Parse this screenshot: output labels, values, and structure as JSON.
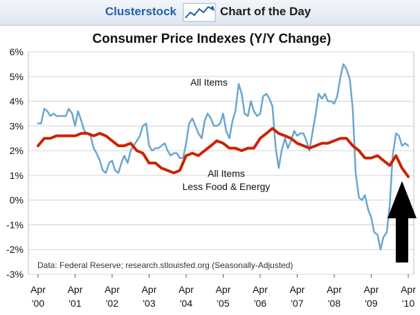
{
  "header": {
    "brand": "Clusterstock",
    "label": "Chart of the Day",
    "logo_icon": "chart-trend-icon"
  },
  "chart_data": {
    "type": "line",
    "title": "Consumer Price Indexes (Y/Y Change)",
    "xlabel": "",
    "ylabel": "",
    "ylim": [
      -3,
      6
    ],
    "xlim": [
      2000.25,
      2010.25
    ],
    "yticks": [
      {
        "value": 6,
        "label": "6%"
      },
      {
        "value": 5,
        "label": "5%"
      },
      {
        "value": 4,
        "label": "4%"
      },
      {
        "value": 3,
        "label": "3%"
      },
      {
        "value": 2,
        "label": "2%"
      },
      {
        "value": 1,
        "label": "1%"
      },
      {
        "value": 0,
        "label": "0%"
      },
      {
        "value": -1,
        "label": "-1%"
      },
      {
        "value": -2,
        "label": "-2%"
      },
      {
        "value": -3,
        "label": "-3%"
      }
    ],
    "xticks": [
      {
        "value": 2000.25,
        "line1": "Apr",
        "line2": "'00"
      },
      {
        "value": 2001.25,
        "line1": "Apr",
        "line2": "'01"
      },
      {
        "value": 2002.25,
        "line1": "Apr",
        "line2": "'02"
      },
      {
        "value": 2003.25,
        "line1": "Apr",
        "line2": "'03"
      },
      {
        "value": 2004.25,
        "line1": "Apr",
        "line2": "'04"
      },
      {
        "value": 2005.25,
        "line1": "Apr",
        "line2": "'05"
      },
      {
        "value": 2006.25,
        "line1": "Apr",
        "line2": "'06"
      },
      {
        "value": 2007.25,
        "line1": "Apr",
        "line2": "'07"
      },
      {
        "value": 2008.25,
        "line1": "Apr",
        "line2": "'08"
      },
      {
        "value": 2009.25,
        "line1": "Apr",
        "line2": "'09"
      },
      {
        "value": 2010.25,
        "line1": "Apr",
        "line2": "'10"
      }
    ],
    "grid": true,
    "series": [
      {
        "name": "All Items",
        "color": "#6aa6cf",
        "points": [
          [
            2000.25,
            3.1
          ],
          [
            2000.33,
            3.1
          ],
          [
            2000.42,
            3.7
          ],
          [
            2000.5,
            3.6
          ],
          [
            2000.58,
            3.4
          ],
          [
            2000.67,
            3.5
          ],
          [
            2000.75,
            3.4
          ],
          [
            2000.83,
            3.4
          ],
          [
            2000.92,
            3.4
          ],
          [
            2001.0,
            3.4
          ],
          [
            2001.08,
            3.7
          ],
          [
            2001.17,
            3.5
          ],
          [
            2001.25,
            3.0
          ],
          [
            2001.33,
            3.6
          ],
          [
            2001.42,
            3.2
          ],
          [
            2001.5,
            2.8
          ],
          [
            2001.58,
            2.7
          ],
          [
            2001.67,
            2.6
          ],
          [
            2001.75,
            2.1
          ],
          [
            2001.83,
            1.9
          ],
          [
            2001.92,
            1.6
          ],
          [
            2002.0,
            1.2
          ],
          [
            2002.08,
            1.1
          ],
          [
            2002.17,
            1.5
          ],
          [
            2002.25,
            1.6
          ],
          [
            2002.33,
            1.2
          ],
          [
            2002.42,
            1.1
          ],
          [
            2002.5,
            1.5
          ],
          [
            2002.58,
            1.8
          ],
          [
            2002.67,
            1.5
          ],
          [
            2002.75,
            2.0
          ],
          [
            2002.83,
            2.2
          ],
          [
            2002.92,
            2.4
          ],
          [
            2003.0,
            2.6
          ],
          [
            2003.08,
            3.0
          ],
          [
            2003.17,
            3.1
          ],
          [
            2003.25,
            2.2
          ],
          [
            2003.33,
            2.0
          ],
          [
            2003.42,
            2.1
          ],
          [
            2003.5,
            2.1
          ],
          [
            2003.58,
            2.2
          ],
          [
            2003.67,
            2.3
          ],
          [
            2003.75,
            2.0
          ],
          [
            2003.83,
            1.8
          ],
          [
            2003.92,
            1.9
          ],
          [
            2004.0,
            1.9
          ],
          [
            2004.08,
            1.7
          ],
          [
            2004.17,
            1.7
          ],
          [
            2004.25,
            2.3
          ],
          [
            2004.33,
            3.1
          ],
          [
            2004.42,
            3.3
          ],
          [
            2004.5,
            3.0
          ],
          [
            2004.58,
            2.7
          ],
          [
            2004.67,
            2.5
          ],
          [
            2004.75,
            3.2
          ],
          [
            2004.83,
            3.5
          ],
          [
            2004.92,
            3.3
          ],
          [
            2005.0,
            3.0
          ],
          [
            2005.08,
            3.0
          ],
          [
            2005.17,
            3.1
          ],
          [
            2005.25,
            3.5
          ],
          [
            2005.33,
            2.8
          ],
          [
            2005.42,
            2.5
          ],
          [
            2005.5,
            3.2
          ],
          [
            2005.58,
            3.6
          ],
          [
            2005.67,
            4.7
          ],
          [
            2005.75,
            4.3
          ],
          [
            2005.83,
            3.5
          ],
          [
            2005.92,
            3.4
          ],
          [
            2006.0,
            4.0
          ],
          [
            2006.08,
            3.6
          ],
          [
            2006.17,
            3.4
          ],
          [
            2006.25,
            3.5
          ],
          [
            2006.33,
            4.2
          ],
          [
            2006.42,
            4.3
          ],
          [
            2006.5,
            4.1
          ],
          [
            2006.58,
            3.8
          ],
          [
            2006.67,
            2.1
          ],
          [
            2006.75,
            1.3
          ],
          [
            2006.83,
            2.0
          ],
          [
            2006.92,
            2.5
          ],
          [
            2007.0,
            2.1
          ],
          [
            2007.08,
            2.4
          ],
          [
            2007.17,
            2.8
          ],
          [
            2007.25,
            2.6
          ],
          [
            2007.33,
            2.7
          ],
          [
            2007.42,
            2.7
          ],
          [
            2007.5,
            2.4
          ],
          [
            2007.58,
            2.0
          ],
          [
            2007.67,
            2.8
          ],
          [
            2007.75,
            3.5
          ],
          [
            2007.83,
            4.3
          ],
          [
            2007.92,
            4.1
          ],
          [
            2008.0,
            4.3
          ],
          [
            2008.08,
            4.0
          ],
          [
            2008.17,
            4.0
          ],
          [
            2008.25,
            3.9
          ],
          [
            2008.33,
            4.2
          ],
          [
            2008.42,
            5.0
          ],
          [
            2008.5,
            5.5
          ],
          [
            2008.58,
            5.3
          ],
          [
            2008.67,
            4.9
          ],
          [
            2008.75,
            3.7
          ],
          [
            2008.83,
            1.1
          ],
          [
            2008.92,
            0.1
          ],
          [
            2009.0,
            0.0
          ],
          [
            2009.08,
            0.2
          ],
          [
            2009.17,
            -0.4
          ],
          [
            2009.25,
            -0.7
          ],
          [
            2009.33,
            -1.3
          ],
          [
            2009.42,
            -1.4
          ],
          [
            2009.5,
            -2.0
          ],
          [
            2009.58,
            -1.5
          ],
          [
            2009.67,
            -1.3
          ],
          [
            2009.75,
            -0.2
          ],
          [
            2009.83,
            1.8
          ],
          [
            2009.92,
            2.7
          ],
          [
            2010.0,
            2.6
          ],
          [
            2010.08,
            2.2
          ],
          [
            2010.17,
            2.3
          ],
          [
            2010.25,
            2.2
          ]
        ]
      },
      {
        "name": "All Items Less Food & Energy",
        "color": "#cc2200",
        "points": [
          [
            2000.25,
            2.2
          ],
          [
            2000.42,
            2.5
          ],
          [
            2000.58,
            2.5
          ],
          [
            2000.75,
            2.6
          ],
          [
            2000.92,
            2.6
          ],
          [
            2001.08,
            2.6
          ],
          [
            2001.25,
            2.6
          ],
          [
            2001.42,
            2.7
          ],
          [
            2001.58,
            2.7
          ],
          [
            2001.75,
            2.6
          ],
          [
            2001.92,
            2.7
          ],
          [
            2002.08,
            2.6
          ],
          [
            2002.25,
            2.4
          ],
          [
            2002.42,
            2.2
          ],
          [
            2002.58,
            2.2
          ],
          [
            2002.75,
            2.3
          ],
          [
            2002.92,
            2.0
          ],
          [
            2003.08,
            1.9
          ],
          [
            2003.25,
            1.5
          ],
          [
            2003.42,
            1.5
          ],
          [
            2003.58,
            1.3
          ],
          [
            2003.75,
            1.2
          ],
          [
            2003.92,
            1.1
          ],
          [
            2004.08,
            1.2
          ],
          [
            2004.25,
            1.8
          ],
          [
            2004.42,
            1.9
          ],
          [
            2004.58,
            1.8
          ],
          [
            2004.75,
            2.0
          ],
          [
            2004.92,
            2.2
          ],
          [
            2005.08,
            2.4
          ],
          [
            2005.25,
            2.3
          ],
          [
            2005.42,
            2.1
          ],
          [
            2005.58,
            2.1
          ],
          [
            2005.75,
            2.0
          ],
          [
            2005.92,
            2.1
          ],
          [
            2006.08,
            2.1
          ],
          [
            2006.25,
            2.5
          ],
          [
            2006.42,
            2.7
          ],
          [
            2006.58,
            2.9
          ],
          [
            2006.75,
            2.7
          ],
          [
            2006.92,
            2.6
          ],
          [
            2007.08,
            2.5
          ],
          [
            2007.25,
            2.3
          ],
          [
            2007.42,
            2.2
          ],
          [
            2007.58,
            2.1
          ],
          [
            2007.75,
            2.2
          ],
          [
            2007.92,
            2.3
          ],
          [
            2008.08,
            2.3
          ],
          [
            2008.25,
            2.4
          ],
          [
            2008.42,
            2.5
          ],
          [
            2008.58,
            2.5
          ],
          [
            2008.75,
            2.2
          ],
          [
            2008.92,
            2.0
          ],
          [
            2009.08,
            1.7
          ],
          [
            2009.25,
            1.7
          ],
          [
            2009.42,
            1.8
          ],
          [
            2009.58,
            1.6
          ],
          [
            2009.75,
            1.4
          ],
          [
            2009.92,
            1.8
          ],
          [
            2010.08,
            1.3
          ],
          [
            2010.25,
            0.95
          ]
        ]
      }
    ],
    "annotations": {
      "all_items_label": "All Items",
      "core_label_line1": "All Items",
      "core_label_line2": "Less Food & Energy",
      "source_note": "Data: Federal Reserve; research.stlouisfed.org (Seasonally-Adjusted)"
    },
    "colors": {
      "frame": "#bdbdbd",
      "grid": "#d3d3d3",
      "all_items": "#6aa6cf",
      "core": "#cc2200",
      "arrow": "#000000"
    }
  }
}
